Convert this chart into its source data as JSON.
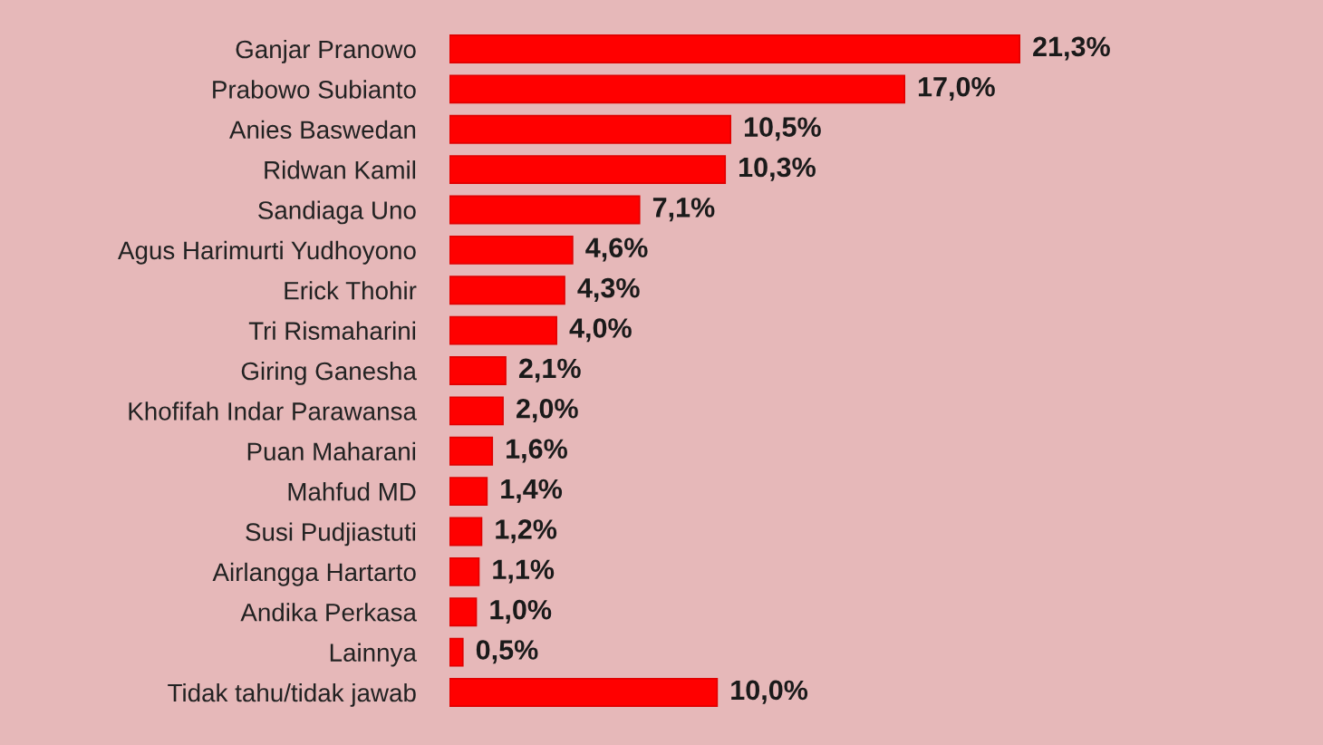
{
  "chart_data": {
    "type": "bar",
    "orientation": "horizontal",
    "categories": [
      "Ganjar Pranowo",
      "Prabowo Subianto",
      "Anies Baswedan",
      "Ridwan Kamil",
      "Sandiaga Uno",
      "Agus Harimurti Yudhoyono",
      "Erick Thohir",
      "Tri Rismaharini",
      "Giring Ganesha",
      "Khofifah Indar Parawansa",
      "Puan Maharani",
      "Mahfud MD",
      "Susi Pudjiastuti",
      "Airlangga Hartarto",
      "Andika Perkasa",
      "Lainnya",
      "Tidak tahu/tidak jawab"
    ],
    "values": [
      21.3,
      17.0,
      10.5,
      10.3,
      7.1,
      4.6,
      4.3,
      4.0,
      2.1,
      2.0,
      1.6,
      1.4,
      1.2,
      1.1,
      1.0,
      0.5,
      10.0
    ],
    "value_labels": [
      "21,3%",
      "17,0%",
      "10,5%",
      "10,3%",
      "7,1%",
      "4,6%",
      "4,3%",
      "4,0%",
      "2,1%",
      "2,0%",
      "1,6%",
      "1,4%",
      "1,2%",
      "1,1%",
      "1,0%",
      "0,5%",
      "10,0%"
    ],
    "color": "#ff0000",
    "tick_labels": "y"
  }
}
